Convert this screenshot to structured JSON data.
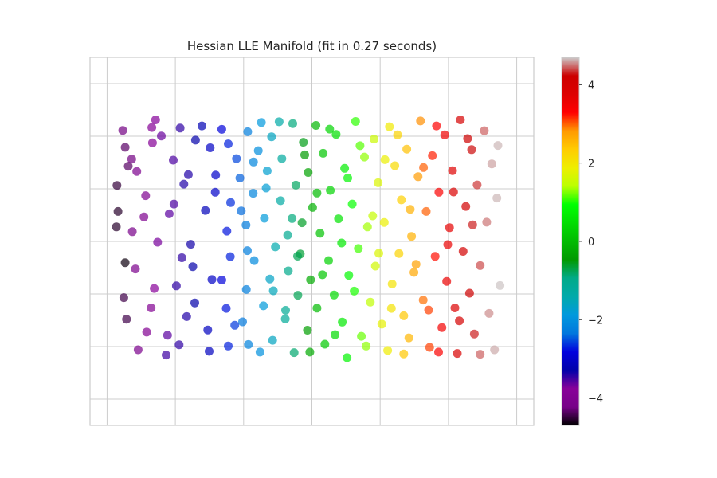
{
  "chart_data": {
    "type": "scatter",
    "title": "Hessian LLE Manifold (fit in 0.27 seconds)",
    "xlabel": "",
    "ylabel": "",
    "xlim": [
      -0.065,
      0.065
    ],
    "ylim": [
      -0.07,
      0.07
    ],
    "xticks": [
      -0.06,
      -0.04,
      -0.02,
      0.0,
      0.02,
      0.04,
      0.06
    ],
    "yticks": [
      -0.06,
      -0.04,
      -0.02,
      0.0,
      0.02,
      0.04,
      0.06
    ],
    "grid": true,
    "colormap": "nipy_spectral",
    "color_range": [
      -4.7,
      4.7
    ],
    "colorbar": {
      "ticks": [
        4,
        2,
        0,
        -2,
        -4
      ],
      "tick_labels": [
        "4",
        "2",
        "0",
        "−2",
        "−4"
      ]
    },
    "marker_alpha": 0.7,
    "points": [
      [
        -0.0547,
        -0.0081,
        -4.65
      ],
      [
        -0.0538,
        0.0286,
        -4.36
      ],
      [
        -0.0573,
        0.0055,
        -4.55
      ],
      [
        -0.0554,
        0.0422,
        -4.25
      ],
      [
        -0.0543,
        -0.0296,
        -4.45
      ],
      [
        -0.0547,
        0.0358,
        -4.35
      ],
      [
        -0.0571,
        0.0213,
        -4.5
      ],
      [
        -0.0492,
        0.0093,
        -4.05
      ],
      [
        -0.0467,
        0.0375,
        -3.85
      ],
      [
        -0.0517,
        -0.0105,
        -4.15
      ],
      [
        -0.0471,
        -0.0253,
        -3.95
      ],
      [
        -0.0469,
        0.0433,
        -3.85
      ],
      [
        -0.0513,
        0.0266,
        -4.1
      ],
      [
        -0.0484,
        -0.0345,
        -3.95
      ],
      [
        -0.0452,
        -0.0003,
        -3.7
      ],
      [
        -0.0458,
        0.0462,
        -3.75
      ],
      [
        -0.0526,
        0.0037,
        -4.2
      ],
      [
        -0.0427,
        -0.0432,
        -3.5
      ],
      [
        -0.0406,
        0.0309,
        -3.55
      ],
      [
        -0.0397,
        -0.0169,
        -3.45
      ],
      [
        -0.0418,
        0.0105,
        -3.6
      ],
      [
        -0.0389,
        -0.0393,
        -3.45
      ],
      [
        -0.0386,
        0.0431,
        -3.45
      ],
      [
        -0.0355,
        -0.0011,
        -3.35
      ],
      [
        -0.0375,
        0.0218,
        -3.4
      ],
      [
        -0.0367,
        -0.0286,
        -3.4
      ],
      [
        -0.0341,
        0.0385,
        -3.3
      ],
      [
        -0.0349,
        -0.0096,
        -3.3
      ],
      [
        -0.0312,
        0.0118,
        -3.15
      ],
      [
        -0.0305,
        -0.0337,
        -3.1
      ],
      [
        -0.0298,
        0.0356,
        -3.05
      ],
      [
        -0.0293,
        -0.0145,
        -3.05
      ],
      [
        -0.0282,
        0.0252,
        -3.0
      ],
      [
        -0.0251,
        -0.0255,
        -2.75
      ],
      [
        -0.0264,
        0.0426,
        -2.85
      ],
      [
        -0.0249,
        0.0039,
        -2.75
      ],
      [
        -0.0239,
        -0.0058,
        -2.7
      ],
      [
        -0.0245,
        -0.0398,
        -2.7
      ],
      [
        -0.0221,
        0.0315,
        -2.55
      ],
      [
        -0.0238,
        0.0148,
        -2.65
      ],
      [
        -0.0192,
        -0.0183,
        -2.25
      ],
      [
        -0.0211,
        0.0241,
        -2.45
      ],
      [
        -0.0188,
        0.0417,
        -2.25
      ],
      [
        -0.0203,
        -0.0306,
        -2.35
      ],
      [
        -0.0193,
        0.0062,
        -2.3
      ],
      [
        -0.0169,
        -0.0073,
        -2.1
      ],
      [
        -0.0186,
        -0.0392,
        -2.2
      ],
      [
        -0.0157,
        0.0345,
        -2.05
      ],
      [
        -0.0172,
        0.0183,
        -2.15
      ],
      [
        -0.0142,
        -0.0245,
        -1.85
      ],
      [
        -0.0139,
        0.0088,
        -1.85
      ],
      [
        -0.0148,
        0.0452,
        -1.9
      ],
      [
        -0.0123,
        -0.0143,
        -1.65
      ],
      [
        -0.0131,
        0.0268,
        -1.75
      ],
      [
        -0.0115,
        -0.0376,
        -1.6
      ],
      [
        -0.0107,
        -0.0021,
        -1.45
      ],
      [
        -0.0118,
        0.0398,
        -1.6
      ],
      [
        -0.0092,
        0.0155,
        -1.3
      ],
      [
        -0.0078,
        -0.0295,
        -1.15
      ],
      [
        -0.0088,
        0.0315,
        -1.25
      ],
      [
        -0.0069,
        -0.0112,
        -1.0
      ],
      [
        -0.0071,
        0.0024,
        -1.05
      ],
      [
        -0.0056,
        0.0448,
        -0.9
      ],
      [
        -0.0052,
        -0.0423,
        -0.85
      ],
      [
        -0.0047,
        0.0214,
        -0.8
      ],
      [
        -0.0041,
        -0.0205,
        -0.75
      ],
      [
        -0.0034,
        -0.0048,
        -0.65
      ],
      [
        -0.0025,
        0.0377,
        -0.55
      ],
      [
        -0.0029,
        0.0071,
        -0.6
      ],
      [
        -0.0013,
        -0.0338,
        -0.4
      ],
      [
        -0.0011,
        0.0262,
        -0.35
      ],
      [
        -0.0004,
        -0.0146,
        -0.25
      ],
      [
        0.0002,
        0.0129,
        -0.15
      ],
      [
        0.0012,
        0.0441,
        -0.05
      ],
      [
        0.0015,
        -0.0254,
        0.0
      ],
      [
        0.0024,
        0.0031,
        0.1
      ],
      [
        0.0038,
        -0.0391,
        0.2
      ],
      [
        0.0033,
        0.0335,
        0.15
      ],
      [
        0.0049,
        -0.0073,
        0.3
      ],
      [
        0.0054,
        0.0194,
        0.35
      ],
      [
        0.0065,
        -0.0204,
        0.45
      ],
      [
        0.0071,
        0.0407,
        0.5
      ],
      [
        0.0078,
        0.0086,
        0.55
      ],
      [
        0.0089,
        -0.0307,
        0.65
      ],
      [
        0.0096,
        0.0278,
        0.7
      ],
      [
        0.0108,
        -0.0129,
        0.85
      ],
      [
        0.0103,
        -0.0442,
        0.8
      ],
      [
        0.0118,
        0.0142,
        0.95
      ],
      [
        0.0128,
        0.0456,
        1.05
      ],
      [
        0.0136,
        -0.0027,
        1.1
      ],
      [
        0.0145,
        -0.0361,
        1.2
      ],
      [
        0.0154,
        0.0321,
        1.3
      ],
      [
        0.0163,
        0.0055,
        1.35
      ],
      [
        0.0171,
        -0.0231,
        1.45
      ],
      [
        0.0182,
        0.0389,
        1.55
      ],
      [
        0.0186,
        -0.0094,
        1.6
      ],
      [
        0.0194,
        0.0223,
        1.7
      ],
      [
        0.0205,
        -0.0315,
        1.8
      ],
      [
        0.0212,
        0.0072,
        1.85
      ],
      [
        0.0222,
        -0.0415,
        1.9
      ],
      [
        0.0227,
        0.0436,
        1.95
      ],
      [
        0.0235,
        -0.0162,
        2.05
      ],
      [
        0.0243,
        0.0288,
        2.15
      ],
      [
        0.0255,
        -0.0046,
        2.25
      ],
      [
        0.0262,
        0.0158,
        2.3
      ],
      [
        0.0269,
        -0.0283,
        2.4
      ],
      [
        0.0278,
        0.0351,
        2.45
      ],
      [
        0.0284,
        -0.0367,
        2.55
      ],
      [
        0.0292,
        0.0019,
        2.6
      ],
      [
        0.0299,
        -0.0118,
        2.7
      ],
      [
        0.0311,
        0.0246,
        2.8
      ],
      [
        0.0318,
        0.0458,
        2.85
      ],
      [
        0.0326,
        -0.0223,
        2.95
      ],
      [
        0.0335,
        0.0114,
        3.0
      ],
      [
        0.0345,
        -0.0403,
        3.1
      ],
      [
        0.0353,
        0.0326,
        3.2
      ],
      [
        0.0361,
        -0.0057,
        3.25
      ],
      [
        0.0372,
        0.0187,
        3.35
      ],
      [
        0.0381,
        -0.0328,
        3.45
      ],
      [
        0.0389,
        0.0405,
        3.5
      ],
      [
        0.0395,
        -0.0152,
        3.6
      ],
      [
        0.0403,
        0.0052,
        3.65
      ],
      [
        0.0412,
        0.0269,
        3.75
      ],
      [
        0.0419,
        -0.0253,
        3.8
      ],
      [
        0.0426,
        -0.0426,
        3.9
      ],
      [
        0.0435,
        0.0462,
        3.95
      ],
      [
        0.0443,
        -0.0038,
        4.05
      ],
      [
        0.0451,
        0.0133,
        4.1
      ],
      [
        0.0462,
        -0.0197,
        4.2
      ],
      [
        0.0468,
        0.0349,
        4.25
      ],
      [
        0.0476,
        -0.0352,
        4.3
      ],
      [
        0.0484,
        0.0215,
        4.35
      ],
      [
        0.0493,
        -0.0092,
        4.4
      ],
      [
        0.0505,
        0.0421,
        4.45
      ],
      [
        0.0512,
        0.0073,
        4.5
      ],
      [
        0.0519,
        -0.0274,
        4.55
      ],
      [
        0.0527,
        0.0295,
        4.6
      ],
      [
        0.0535,
        -0.0412,
        4.62
      ],
      [
        0.0542,
        0.0165,
        4.65
      ],
      [
        0.0551,
        -0.0168,
        4.68
      ],
      [
        0.0545,
        0.0365,
        4.65
      ],
      [
        0.0493,
        -0.0429,
        4.45
      ],
      [
        0.0471,
        0.0063,
        4.3
      ],
      [
        0.0456,
        0.0391,
        4.2
      ],
      [
        0.0432,
        -0.0302,
        4.0
      ],
      [
        0.0415,
        0.0188,
        3.8
      ],
      [
        0.0398,
        -0.0012,
        3.6
      ],
      [
        0.0371,
        -0.0421,
        3.35
      ],
      [
        0.0365,
        0.0439,
        3.3
      ],
      [
        0.0342,
        -0.0261,
        3.1
      ],
      [
        0.0327,
        0.0281,
        3.0
      ],
      [
        0.0305,
        -0.0087,
        2.75
      ],
      [
        0.0288,
        0.0122,
        2.6
      ],
      [
        0.0269,
        -0.0428,
        2.4
      ],
      [
        0.0251,
        0.0405,
        2.25
      ],
      [
        0.0233,
        -0.0255,
        2.05
      ],
      [
        0.0214,
        0.0311,
        1.85
      ],
      [
        0.0196,
        -0.0045,
        1.7
      ],
      [
        0.0178,
        0.0097,
        1.5
      ],
      [
        0.0159,
        -0.0398,
        1.3
      ],
      [
        0.0141,
        0.0364,
        1.15
      ],
      [
        0.0124,
        -0.0189,
        1.0
      ],
      [
        0.0105,
        0.0241,
        0.8
      ],
      [
        0.0087,
        -0.0006,
        0.65
      ],
      [
        0.0068,
        -0.0355,
        0.45
      ],
      [
        0.0052,
        0.0427,
        0.35
      ],
      [
        0.0031,
        -0.0127,
        0.15
      ],
      [
        0.0015,
        0.0184,
        0.0
      ],
      [
        -0.0006,
        -0.0421,
        -0.25
      ],
      [
        -0.0021,
        0.0329,
        -0.45
      ],
      [
        -0.0042,
        -0.0056,
        -0.75
      ],
      [
        -0.0058,
        0.0087,
        -0.9
      ],
      [
        -0.0077,
        -0.0262,
        -1.1
      ],
      [
        -0.0096,
        0.0455,
        -1.35
      ],
      [
        -0.0113,
        -0.0188,
        -1.55
      ],
      [
        -0.0134,
        0.0203,
        -1.8
      ],
      [
        -0.0152,
        -0.0421,
        -2.0
      ],
      [
        -0.0171,
        0.0302,
        -2.15
      ],
      [
        -0.0189,
        -0.0035,
        -2.25
      ],
      [
        -0.0207,
        0.0116,
        -2.4
      ],
      [
        -0.0226,
        -0.0319,
        -2.6
      ],
      [
        -0.0245,
        0.0371,
        -2.7
      ],
      [
        -0.0264,
        -0.0147,
        -2.85
      ],
      [
        -0.0283,
        0.0187,
        -3.0
      ],
      [
        -0.0301,
        -0.0418,
        -3.1
      ],
      [
        -0.0322,
        0.0439,
        -3.2
      ],
      [
        -0.0343,
        -0.0234,
        -3.3
      ],
      [
        -0.0362,
        0.0254,
        -3.4
      ],
      [
        -0.0381,
        -0.0062,
        -3.45
      ],
      [
        -0.0404,
        0.0142,
        -3.55
      ],
      [
        -0.0423,
        -0.0357,
        -3.6
      ],
      [
        -0.0441,
        0.0401,
        -3.65
      ],
      [
        -0.0462,
        -0.0179,
        -3.8
      ],
      [
        -0.0487,
        0.0174,
        -4.0
      ],
      [
        -0.0509,
        -0.0412,
        -4.15
      ],
      [
        -0.0528,
        0.0313,
        -4.25
      ],
      [
        -0.0551,
        -0.0214,
        -4.45
      ],
      [
        -0.0568,
        0.0114,
        -4.55
      ]
    ]
  }
}
